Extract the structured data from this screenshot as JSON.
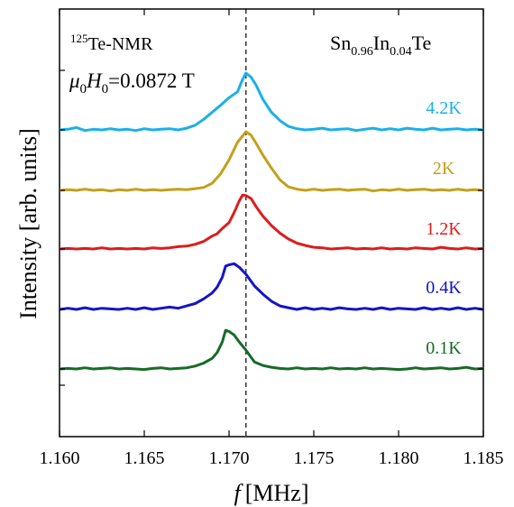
{
  "chart_data": {
    "type": "line",
    "xlabel_var": "f",
    "xlabel_unit": "[MHz]",
    "ylabel": "Intensity [arb. units]",
    "xlim": [
      1.16,
      1.185
    ],
    "x_ticks": [
      "1.160",
      "1.165",
      "1.170",
      "1.175",
      "1.180",
      "1.185"
    ],
    "reference_line_x": 1.171,
    "annotations": {
      "nucleus_sup": "125",
      "nucleus": "Te-NMR",
      "field_mu": "μ",
      "field_mu_sub": "0",
      "field_H": "H",
      "field_H_sub": "0",
      "field_value": "=0.0872 T",
      "compound": {
        "p1": "Sn",
        "s1": "0.96",
        "p2": "In",
        "s2": "0.04",
        "p3": "Te"
      }
    },
    "series": [
      {
        "name": "4.2K",
        "color": "#1ab0e8",
        "baseline": 0,
        "points": [
          [
            1.1598,
            0.0
          ],
          [
            1.1605,
            0.01
          ],
          [
            1.161,
            0.04
          ],
          [
            1.1615,
            -0.01
          ],
          [
            1.162,
            0.01
          ],
          [
            1.1625,
            0.0
          ],
          [
            1.163,
            0.02
          ],
          [
            1.1635,
            0.0
          ],
          [
            1.164,
            0.01
          ],
          [
            1.1645,
            -0.01
          ],
          [
            1.165,
            0.02
          ],
          [
            1.1655,
            0.0
          ],
          [
            1.166,
            0.01
          ],
          [
            1.1665,
            0.02
          ],
          [
            1.167,
            0.0
          ],
          [
            1.1675,
            0.03
          ],
          [
            1.168,
            0.08
          ],
          [
            1.1685,
            0.18
          ],
          [
            1.169,
            0.3
          ],
          [
            1.1695,
            0.42
          ],
          [
            1.17,
            0.55
          ],
          [
            1.1705,
            0.65
          ],
          [
            1.1708,
            0.86
          ],
          [
            1.171,
            0.97
          ],
          [
            1.1713,
            0.9
          ],
          [
            1.1716,
            0.76
          ],
          [
            1.172,
            0.52
          ],
          [
            1.1725,
            0.3
          ],
          [
            1.173,
            0.16
          ],
          [
            1.1735,
            0.06
          ],
          [
            1.174,
            0.02
          ],
          [
            1.1745,
            0.0
          ],
          [
            1.175,
            0.01
          ],
          [
            1.1755,
            0.03
          ],
          [
            1.176,
            0.0
          ],
          [
            1.1765,
            0.01
          ],
          [
            1.177,
            0.02
          ],
          [
            1.1775,
            -0.01
          ],
          [
            1.178,
            0.01
          ],
          [
            1.1785,
            0.03
          ],
          [
            1.179,
            0.0
          ],
          [
            1.1795,
            0.02
          ],
          [
            1.18,
            0.0
          ],
          [
            1.1805,
            0.03
          ],
          [
            1.181,
            0.01
          ],
          [
            1.1815,
            0.0
          ],
          [
            1.182,
            0.03
          ],
          [
            1.1825,
            0.0
          ],
          [
            1.183,
            0.01
          ],
          [
            1.1835,
            0.02
          ],
          [
            1.184,
            0.0
          ],
          [
            1.1845,
            0.01
          ],
          [
            1.185,
            0.0
          ]
        ]
      },
      {
        "name": "2K",
        "color": "#c4a01a",
        "baseline": 0,
        "points": [
          [
            1.1598,
            0.0
          ],
          [
            1.1605,
            0.01
          ],
          [
            1.161,
            0.0
          ],
          [
            1.1615,
            0.02
          ],
          [
            1.162,
            0.0
          ],
          [
            1.1625,
            0.01
          ],
          [
            1.163,
            -0.01
          ],
          [
            1.1635,
            0.01
          ],
          [
            1.164,
            0.0
          ],
          [
            1.1645,
            0.02
          ],
          [
            1.165,
            0.0
          ],
          [
            1.1655,
            0.01
          ],
          [
            1.166,
            0.0
          ],
          [
            1.1665,
            0.01
          ],
          [
            1.167,
            0.02
          ],
          [
            1.1675,
            0.01
          ],
          [
            1.168,
            0.03
          ],
          [
            1.1685,
            0.05
          ],
          [
            1.169,
            0.12
          ],
          [
            1.1695,
            0.28
          ],
          [
            1.17,
            0.52
          ],
          [
            1.1705,
            0.82
          ],
          [
            1.171,
            1.0
          ],
          [
            1.1713,
            0.94
          ],
          [
            1.1716,
            0.8
          ],
          [
            1.172,
            0.6
          ],
          [
            1.1725,
            0.38
          ],
          [
            1.173,
            0.18
          ],
          [
            1.1735,
            0.06
          ],
          [
            1.174,
            0.02
          ],
          [
            1.1745,
            0.0
          ],
          [
            1.175,
            0.02
          ],
          [
            1.1755,
            0.0
          ],
          [
            1.176,
            0.01
          ],
          [
            1.1765,
            0.02
          ],
          [
            1.177,
            0.0
          ],
          [
            1.1775,
            0.01
          ],
          [
            1.178,
            0.02
          ],
          [
            1.1785,
            -0.01
          ],
          [
            1.179,
            0.01
          ],
          [
            1.1795,
            0.0
          ],
          [
            1.18,
            0.02
          ],
          [
            1.1805,
            0.0
          ],
          [
            1.181,
            0.01
          ],
          [
            1.1815,
            0.02
          ],
          [
            1.182,
            0.0
          ],
          [
            1.1825,
            0.01
          ],
          [
            1.183,
            0.0
          ],
          [
            1.1835,
            0.02
          ],
          [
            1.184,
            0.0
          ],
          [
            1.1845,
            0.01
          ],
          [
            1.185,
            0.0
          ]
        ]
      },
      {
        "name": "1.2K",
        "color": "#dd1c1c",
        "baseline": 0,
        "points": [
          [
            1.1598,
            0.0
          ],
          [
            1.1605,
            0.01
          ],
          [
            1.161,
            0.0
          ],
          [
            1.1615,
            0.01
          ],
          [
            1.162,
            0.0
          ],
          [
            1.1625,
            0.02
          ],
          [
            1.163,
            0.0
          ],
          [
            1.1635,
            0.01
          ],
          [
            1.164,
            0.0
          ],
          [
            1.1645,
            0.01
          ],
          [
            1.165,
            0.0
          ],
          [
            1.1655,
            0.02
          ],
          [
            1.166,
            0.01
          ],
          [
            1.1665,
            0.02
          ],
          [
            1.167,
            0.04
          ],
          [
            1.1675,
            0.05
          ],
          [
            1.168,
            0.08
          ],
          [
            1.1685,
            0.13
          ],
          [
            1.169,
            0.22
          ],
          [
            1.1693,
            0.26
          ],
          [
            1.1696,
            0.35
          ],
          [
            1.17,
            0.45
          ],
          [
            1.1703,
            0.62
          ],
          [
            1.1706,
            0.82
          ],
          [
            1.1708,
            0.92
          ],
          [
            1.171,
            0.91
          ],
          [
            1.1713,
            0.86
          ],
          [
            1.1716,
            0.72
          ],
          [
            1.172,
            0.56
          ],
          [
            1.1725,
            0.4
          ],
          [
            1.173,
            0.27
          ],
          [
            1.1735,
            0.17
          ],
          [
            1.174,
            0.1
          ],
          [
            1.1745,
            0.06
          ],
          [
            1.175,
            0.03
          ],
          [
            1.1755,
            0.02
          ],
          [
            1.176,
            0.0
          ],
          [
            1.1765,
            0.01
          ],
          [
            1.177,
            0.02
          ],
          [
            1.1775,
            0.0
          ],
          [
            1.178,
            0.01
          ],
          [
            1.1785,
            0.0
          ],
          [
            1.179,
            0.02
          ],
          [
            1.1795,
            0.0
          ],
          [
            1.18,
            0.01
          ],
          [
            1.1805,
            0.0
          ],
          [
            1.181,
            0.02
          ],
          [
            1.1815,
            0.01
          ],
          [
            1.182,
            0.0
          ],
          [
            1.1825,
            0.03
          ],
          [
            1.183,
            0.01
          ],
          [
            1.1835,
            0.0
          ],
          [
            1.184,
            0.02
          ],
          [
            1.1845,
            0.0
          ],
          [
            1.185,
            0.01
          ]
        ]
      },
      {
        "name": "0.4K",
        "color": "#1414c8",
        "baseline": 0,
        "points": [
          [
            1.1598,
            0.0
          ],
          [
            1.1605,
            0.02
          ],
          [
            1.161,
            0.0
          ],
          [
            1.1615,
            0.03
          ],
          [
            1.162,
            0.0
          ],
          [
            1.1625,
            0.02
          ],
          [
            1.163,
            0.01
          ],
          [
            1.1635,
            0.0
          ],
          [
            1.164,
            0.02
          ],
          [
            1.1645,
            0.0
          ],
          [
            1.165,
            0.03
          ],
          [
            1.1655,
            0.0
          ],
          [
            1.166,
            0.02
          ],
          [
            1.1665,
            0.04
          ],
          [
            1.167,
            0.02
          ],
          [
            1.1675,
            0.06
          ],
          [
            1.168,
            0.1
          ],
          [
            1.1685,
            0.18
          ],
          [
            1.169,
            0.28
          ],
          [
            1.1693,
            0.38
          ],
          [
            1.1696,
            0.55
          ],
          [
            1.1698,
            0.74
          ],
          [
            1.17,
            0.76
          ],
          [
            1.1703,
            0.78
          ],
          [
            1.1706,
            0.72
          ],
          [
            1.171,
            0.6
          ],
          [
            1.1715,
            0.4
          ],
          [
            1.172,
            0.26
          ],
          [
            1.1725,
            0.14
          ],
          [
            1.173,
            0.06
          ],
          [
            1.1735,
            0.03
          ],
          [
            1.174,
            0.0
          ],
          [
            1.1745,
            0.03
          ],
          [
            1.175,
            0.0
          ],
          [
            1.1755,
            0.02
          ],
          [
            1.176,
            0.0
          ],
          [
            1.1765,
            0.03
          ],
          [
            1.177,
            0.01
          ],
          [
            1.1775,
            0.0
          ],
          [
            1.178,
            0.02
          ],
          [
            1.1785,
            0.0
          ],
          [
            1.179,
            0.03
          ],
          [
            1.1795,
            0.0
          ],
          [
            1.18,
            0.02
          ],
          [
            1.1805,
            0.01
          ],
          [
            1.181,
            0.0
          ],
          [
            1.1815,
            0.03
          ],
          [
            1.182,
            0.0
          ],
          [
            1.1825,
            0.02
          ],
          [
            1.183,
            0.0
          ],
          [
            1.1835,
            0.03
          ],
          [
            1.184,
            0.0
          ],
          [
            1.1845,
            0.02
          ],
          [
            1.185,
            0.0
          ]
        ]
      },
      {
        "name": "0.1K",
        "color": "#176b26",
        "baseline": 0,
        "points": [
          [
            1.1598,
            0.0
          ],
          [
            1.1605,
            0.01
          ],
          [
            1.161,
            0.0
          ],
          [
            1.1615,
            0.02
          ],
          [
            1.162,
            0.0
          ],
          [
            1.1625,
            0.01
          ],
          [
            1.163,
            0.02
          ],
          [
            1.1635,
            0.0
          ],
          [
            1.164,
            0.01
          ],
          [
            1.1645,
            0.0
          ],
          [
            1.165,
            -0.01
          ],
          [
            1.1655,
            0.01
          ],
          [
            1.166,
            0.02
          ],
          [
            1.1665,
            0.0
          ],
          [
            1.167,
            0.01
          ],
          [
            1.1675,
            0.02
          ],
          [
            1.168,
            0.05
          ],
          [
            1.1685,
            0.1
          ],
          [
            1.169,
            0.18
          ],
          [
            1.1693,
            0.28
          ],
          [
            1.1696,
            0.46
          ],
          [
            1.1698,
            0.66
          ],
          [
            1.17,
            0.64
          ],
          [
            1.1703,
            0.58
          ],
          [
            1.1706,
            0.46
          ],
          [
            1.171,
            0.32
          ],
          [
            1.1715,
            0.12
          ],
          [
            1.172,
            0.06
          ],
          [
            1.1725,
            0.03
          ],
          [
            1.173,
            0.01
          ],
          [
            1.1735,
            0.0
          ],
          [
            1.174,
            0.02
          ],
          [
            1.1745,
            0.0
          ],
          [
            1.175,
            0.01
          ],
          [
            1.1755,
            0.0
          ],
          [
            1.176,
            0.02
          ],
          [
            1.1765,
            0.0
          ],
          [
            1.177,
            0.01
          ],
          [
            1.1775,
            0.0
          ],
          [
            1.178,
            0.02
          ],
          [
            1.1785,
            0.0
          ],
          [
            1.179,
            0.01
          ],
          [
            1.1795,
            0.0
          ],
          [
            1.18,
            -0.01
          ],
          [
            1.1805,
            0.0
          ],
          [
            1.181,
            0.02
          ],
          [
            1.1815,
            0.0
          ],
          [
            1.182,
            0.01
          ],
          [
            1.1825,
            0.02
          ],
          [
            1.183,
            0.0
          ],
          [
            1.1835,
            0.01
          ],
          [
            1.184,
            0.03
          ],
          [
            1.1845,
            0.0
          ],
          [
            1.185,
            0.01
          ]
        ]
      }
    ]
  }
}
